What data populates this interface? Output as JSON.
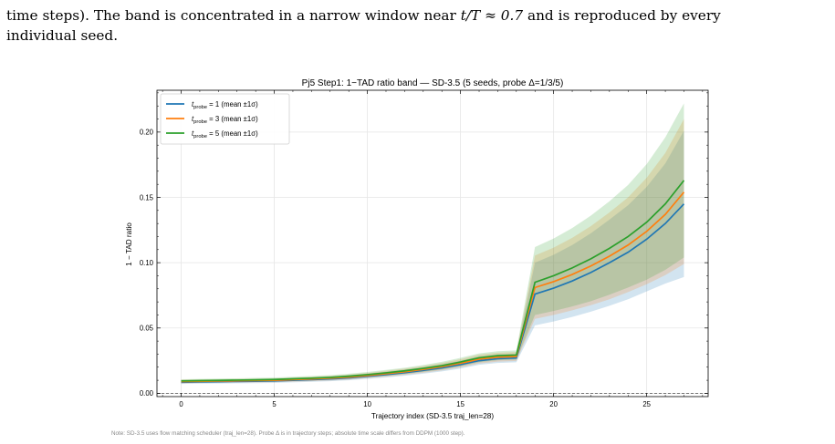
{
  "paragraph": {
    "line1_a": "time steps). The band is concentrated in a narrow window near ",
    "line1_math": "t/T ≈ 0.7",
    "line1_b": " and is reproduced by every",
    "line2": "individual seed."
  },
  "chart_data": {
    "type": "line",
    "title": "Pj5 Step1: 1−TAD ratio band — SD-3.5 (5 seeds, probe Δ=1/3/5)",
    "xlabel": "Trajectory index (SD-3.5 traj_len=28)",
    "ylabel": "1 − TAD ratio",
    "xlim": [
      -1.3,
      28.3
    ],
    "ylim": [
      -0.0025,
      0.232
    ],
    "xticks": [
      0,
      5,
      10,
      15,
      20,
      25
    ],
    "yticks": [
      0.0,
      0.05,
      0.1,
      0.15,
      0.2
    ],
    "ytick_labels": [
      "0.00",
      "0.05",
      "0.10",
      "0.15",
      "0.20"
    ],
    "xtick_labels": [
      "0",
      "5",
      "10",
      "15",
      "20",
      "25"
    ],
    "grid": true,
    "legend_position": "top-left",
    "reference_line_y": 0.0,
    "x": [
      0,
      1,
      2,
      3,
      4,
      5,
      6,
      7,
      8,
      9,
      10,
      11,
      12,
      13,
      14,
      15,
      16,
      17,
      18,
      19,
      20,
      21,
      22,
      23,
      24,
      25,
      26,
      27
    ],
    "series": [
      {
        "name": "t_probe = 1 (mean ±1σ)",
        "label_main": "t",
        "label_sub": "probe",
        "label_rest": " = 1 (mean ±1σ)",
        "color": "#1f77b4",
        "mean": [
          0.0085,
          0.0087,
          0.0089,
          0.0091,
          0.0093,
          0.0095,
          0.01,
          0.0105,
          0.011,
          0.0118,
          0.013,
          0.0143,
          0.0158,
          0.0175,
          0.0195,
          0.022,
          0.025,
          0.0265,
          0.027,
          0.076,
          0.0805,
          0.086,
          0.0925,
          0.1,
          0.108,
          0.118,
          0.13,
          0.145
        ],
        "lower": [
          0.0072,
          0.0074,
          0.0075,
          0.0077,
          0.0078,
          0.008,
          0.0084,
          0.0088,
          0.0093,
          0.01,
          0.011,
          0.0122,
          0.0135,
          0.015,
          0.0168,
          0.019,
          0.0218,
          0.0232,
          0.0238,
          0.052,
          0.055,
          0.0585,
          0.0625,
          0.067,
          0.072,
          0.078,
          0.084,
          0.089
        ],
        "upper": [
          0.01,
          0.0102,
          0.0104,
          0.0106,
          0.0108,
          0.0111,
          0.0116,
          0.0122,
          0.0128,
          0.0137,
          0.015,
          0.0165,
          0.0182,
          0.02,
          0.0222,
          0.025,
          0.0283,
          0.0298,
          0.0303,
          0.1,
          0.106,
          0.1135,
          0.1225,
          0.133,
          0.144,
          0.158,
          0.176,
          0.201
        ]
      },
      {
        "name": "t_probe = 3 (mean ±1σ)",
        "label_main": "t",
        "label_sub": "probe",
        "label_rest": " = 3 (mean ±1σ)",
        "color": "#ff7f0e",
        "mean": [
          0.009,
          0.0092,
          0.0094,
          0.0096,
          0.0098,
          0.01,
          0.0105,
          0.011,
          0.0116,
          0.0124,
          0.0136,
          0.015,
          0.0165,
          0.0183,
          0.0204,
          0.023,
          0.0262,
          0.0277,
          0.0282,
          0.081,
          0.0855,
          0.091,
          0.0975,
          0.105,
          0.1135,
          0.124,
          0.137,
          0.154
        ],
        "lower": [
          0.0077,
          0.0079,
          0.008,
          0.0082,
          0.0083,
          0.0085,
          0.0089,
          0.0093,
          0.0098,
          0.0105,
          0.0116,
          0.0128,
          0.0141,
          0.0157,
          0.0176,
          0.0199,
          0.0228,
          0.0243,
          0.0248,
          0.057,
          0.06,
          0.0635,
          0.0675,
          0.072,
          0.0775,
          0.0835,
          0.0905,
          0.099
        ],
        "upper": [
          0.0104,
          0.0106,
          0.0108,
          0.011,
          0.0112,
          0.0115,
          0.0121,
          0.0127,
          0.0134,
          0.0143,
          0.0156,
          0.0172,
          0.0189,
          0.0209,
          0.0232,
          0.0261,
          0.0296,
          0.0311,
          0.0316,
          0.1055,
          0.1115,
          0.119,
          0.128,
          0.1385,
          0.15,
          0.165,
          0.184,
          0.21
        ]
      },
      {
        "name": "t_probe = 5 (mean ±1σ)",
        "label_main": "t",
        "label_sub": "probe",
        "label_rest": " = 5 (mean ±1σ)",
        "color": "#2ca02c",
        "mean": [
          0.0095,
          0.0097,
          0.0099,
          0.0101,
          0.0103,
          0.0106,
          0.0111,
          0.0116,
          0.0122,
          0.0131,
          0.0143,
          0.0157,
          0.0172,
          0.0191,
          0.0212,
          0.024,
          0.0272,
          0.0288,
          0.0293,
          0.085,
          0.09,
          0.096,
          0.103,
          0.111,
          0.12,
          0.131,
          0.145,
          0.163
        ],
        "lower": [
          0.0082,
          0.0084,
          0.0085,
          0.0087,
          0.0088,
          0.009,
          0.0095,
          0.0099,
          0.0104,
          0.0112,
          0.0123,
          0.0135,
          0.0148,
          0.0164,
          0.0183,
          0.0207,
          0.0238,
          0.0253,
          0.0258,
          0.06,
          0.063,
          0.0665,
          0.0705,
          0.0755,
          0.081,
          0.087,
          0.0945,
          0.104
        ],
        "upper": [
          0.0108,
          0.011,
          0.0113,
          0.0115,
          0.0118,
          0.0121,
          0.0127,
          0.0133,
          0.014,
          0.015,
          0.0163,
          0.0179,
          0.0196,
          0.0217,
          0.0241,
          0.0272,
          0.0306,
          0.0322,
          0.0328,
          0.112,
          0.1185,
          0.1265,
          0.136,
          0.147,
          0.1595,
          0.1755,
          0.196,
          0.222
        ]
      }
    ]
  },
  "note": "Note: SD-3.5 uses flow matching scheduler (traj_len=28). Probe Δ is in trajectory steps; absolute time scale differs from DDPM (1000 step)."
}
